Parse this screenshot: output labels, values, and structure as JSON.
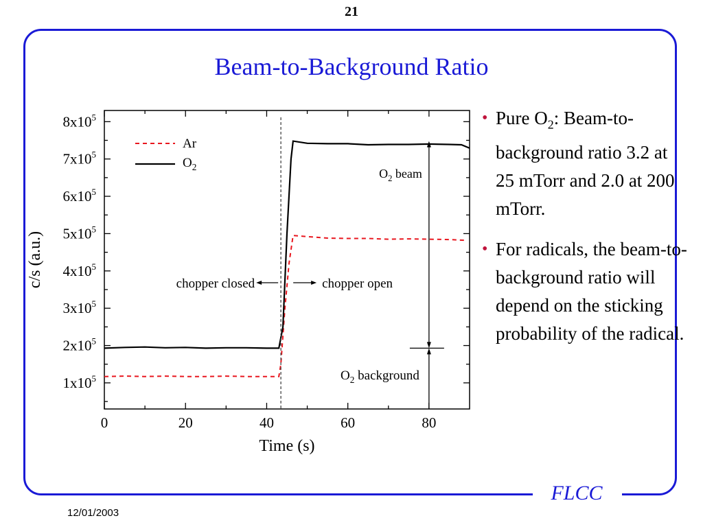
{
  "slide": {
    "page_number": "21",
    "title": "Beam-to-Background Ratio",
    "brand": "FLCC",
    "date": "12/01/2003"
  },
  "bullets": [
    {
      "lead": "Pure O",
      "sub": "2",
      "rest": ": Beam-to-background ratio 3.2 at 25 mTorr and 2.0 at 200 mTorr."
    },
    {
      "text": "For radicals, the beam-to-background ratio will depend on the sticking probability of the radical."
    }
  ],
  "colors": {
    "accent": "#1a1ad6",
    "ar_series": "#e8161e",
    "o2_series": "#000000",
    "bullet": "#c0143c"
  },
  "chart_data": {
    "type": "line",
    "xlabel": "Time (s)",
    "ylabel": "c/s (a.u.)",
    "xlim": [
      0,
      90
    ],
    "ylim": [
      30000,
      830000
    ],
    "x_ticks": [
      0,
      20,
      40,
      60,
      80
    ],
    "y_ticks": [
      {
        "value": 100000,
        "mantissa": "1x10",
        "exp": "5"
      },
      {
        "value": 200000,
        "mantissa": "2x10",
        "exp": "5"
      },
      {
        "value": 300000,
        "mantissa": "3x10",
        "exp": "5"
      },
      {
        "value": 400000,
        "mantissa": "4x10",
        "exp": "5"
      },
      {
        "value": 500000,
        "mantissa": "5x10",
        "exp": "5"
      },
      {
        "value": 600000,
        "mantissa": "6x10",
        "exp": "5"
      },
      {
        "value": 700000,
        "mantissa": "7x10",
        "exp": "5"
      },
      {
        "value": 800000,
        "mantissa": "8x10",
        "exp": "5"
      }
    ],
    "legend_position": "top-left",
    "series": [
      {
        "name": "Ar",
        "style": "dashed",
        "color": "#e8161e",
        "x": [
          0,
          5,
          10,
          15,
          20,
          25,
          30,
          35,
          40,
          43,
          43.5,
          44.5,
          45.5,
          46.5,
          50,
          55,
          60,
          65,
          70,
          75,
          80,
          85,
          89
        ],
        "y": [
          117000,
          118000,
          117000,
          118000,
          117000,
          117000,
          118000,
          117000,
          117000,
          117000,
          150000,
          300000,
          420000,
          495000,
          492000,
          488000,
          487000,
          487000,
          485000,
          486000,
          485000,
          484000,
          482000
        ]
      },
      {
        "name": "O",
        "name_sub": "2",
        "style": "solid",
        "color": "#000000",
        "x": [
          0,
          5,
          10,
          15,
          20,
          25,
          30,
          35,
          40,
          43,
          44,
          45,
          46,
          46.5,
          50,
          55,
          60,
          65,
          70,
          75,
          80,
          85,
          88,
          90
        ],
        "y": [
          193000,
          195000,
          196000,
          194000,
          195000,
          193000,
          194000,
          194000,
          193000,
          193000,
          250000,
          500000,
          700000,
          748000,
          742000,
          741000,
          741000,
          738000,
          739000,
          739000,
          740000,
          739000,
          738000,
          729000
        ]
      }
    ],
    "annotations": {
      "chopper_closed": "chopper closed",
      "chopper_open": "chopper open",
      "chopper_time": 43.5,
      "o2_beam": {
        "lead": "O",
        "sub": "2",
        "rest": " beam"
      },
      "o2_background": {
        "lead": "O",
        "sub": "2",
        "rest": " background"
      },
      "arrow_x": 80,
      "background_level": 193000,
      "beam_level": 748000
    }
  }
}
